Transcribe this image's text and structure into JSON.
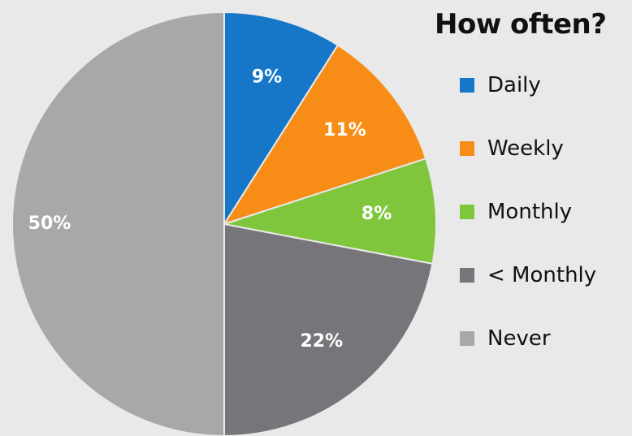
{
  "colors": {
    "background": "#e9e9e9",
    "slice_label_text": "#ffffff",
    "title_text": "#111111",
    "legend_text": "#111111"
  },
  "chart_data": {
    "type": "pie",
    "title": "How often?",
    "categories": [
      "Daily",
      "Weekly",
      "Monthly",
      "< Monthly",
      "Never"
    ],
    "values": [
      9,
      11,
      8,
      22,
      50
    ],
    "labels": [
      "9%",
      "11%",
      "8%",
      "22%",
      "50%"
    ],
    "colors": [
      "#1677c9",
      "#f78d17",
      "#7fc63c",
      "#76767a",
      "#a8a8a9"
    ],
    "legend_position": "right"
  }
}
